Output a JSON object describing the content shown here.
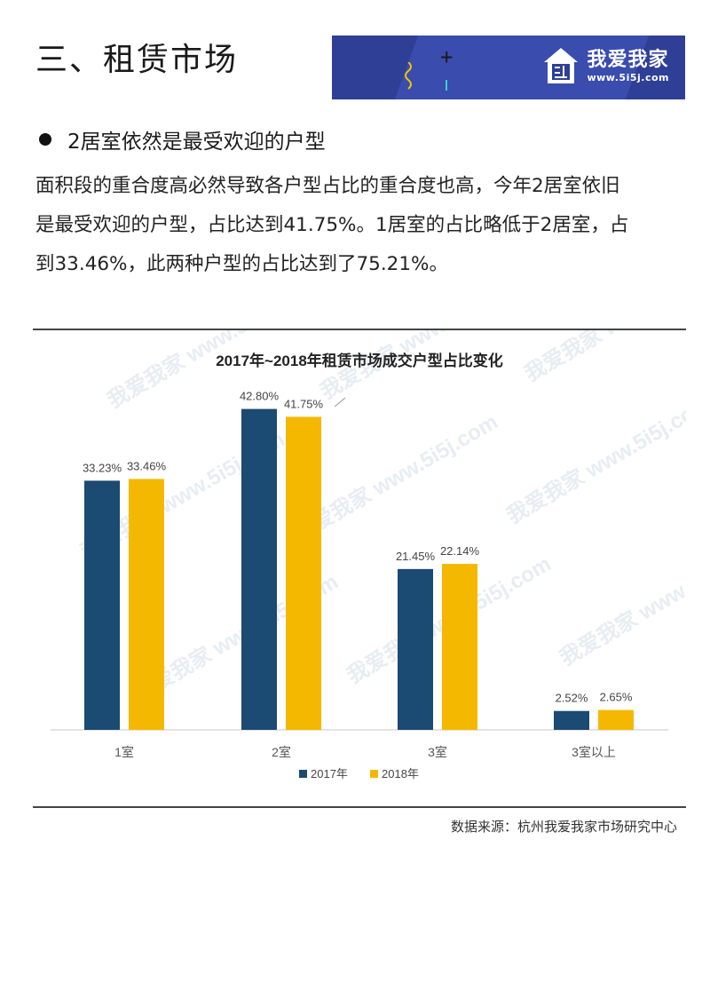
{
  "section_title": "三、租赁市场",
  "brand": {
    "name": "我爱我家",
    "url": "www.5i5j.com"
  },
  "bullet_heading": "2居室依然是最受欢迎的户型",
  "paragraph_lines": [
    "面积段的重合度高必然导致各户型占比的重合度也高，今年2居室依旧",
    "是最受欢迎的户型，占比达到41.75%。1居室的占比略低于2居室，占",
    "到33.46%，此两种户型的占比达到了75.21%。"
  ],
  "source_note": "数据来源：杭州我爱我家市场研究中心",
  "colors": {
    "series_2017": "#1b4a72",
    "series_2018": "#f5b800",
    "banner": "#2f3f96"
  },
  "chart_data": {
    "type": "bar",
    "title": "2017年~2018年租赁市场成交户型占比变化",
    "categories": [
      "1室",
      "2室",
      "3室",
      "3室以上"
    ],
    "series": [
      {
        "name": "2017年",
        "values": [
          33.23,
          42.8,
          21.45,
          2.52
        ],
        "labels": [
          "33.23%",
          "42.80%",
          "21.45%",
          "2.52%"
        ]
      },
      {
        "name": "2018年",
        "values": [
          33.46,
          41.75,
          22.14,
          2.65
        ],
        "labels": [
          "33.46%",
          "41.75%",
          "22.14%",
          "2.65%"
        ]
      }
    ],
    "ylim": [
      0,
      45
    ],
    "grid": false,
    "legend_position": "bottom-center",
    "watermark": "我爱我家 www.5i5j.com"
  }
}
